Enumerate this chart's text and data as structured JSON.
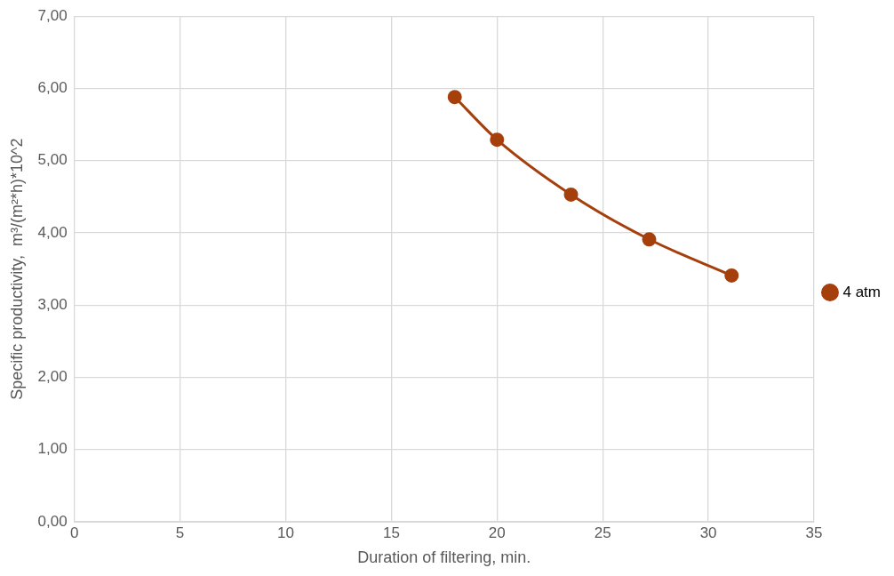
{
  "chart_data": {
    "type": "line",
    "xlabel": "Duration of filtering, min.",
    "ylabel": "Specific productivity,  m³/(m²*h)*10^2",
    "series": [
      {
        "name": "4 atm",
        "color": "#a5400c",
        "x": [
          18.0,
          20.0,
          23.5,
          27.2,
          31.1
        ],
        "values": [
          5.88,
          5.29,
          4.53,
          3.91,
          3.41
        ]
      }
    ],
    "xlim": [
      0,
      35
    ],
    "xticks": [
      0,
      5,
      10,
      15,
      20,
      25,
      30,
      35
    ],
    "ylim": [
      0,
      7
    ],
    "yticks": [
      {
        "value": 0,
        "label": "0,00"
      },
      {
        "value": 1,
        "label": "1,00"
      },
      {
        "value": 2,
        "label": "2,00"
      },
      {
        "value": 3,
        "label": "3,00"
      },
      {
        "value": 4,
        "label": "4,00"
      },
      {
        "value": 5,
        "label": "5,00"
      },
      {
        "value": 6,
        "label": "6,00"
      },
      {
        "value": 7,
        "label": "7,00"
      }
    ],
    "grid": true,
    "legend": "right",
    "marker": "circle",
    "line_style": "solid"
  }
}
